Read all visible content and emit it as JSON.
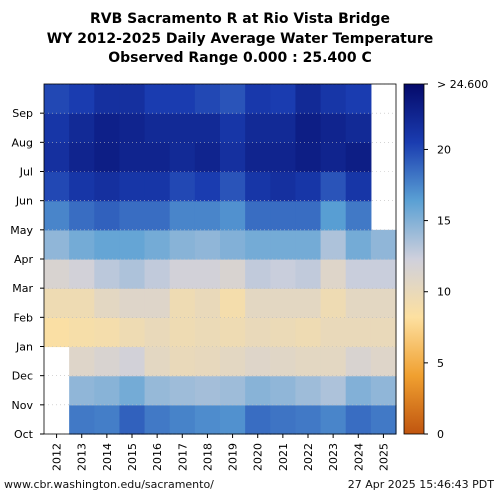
{
  "title_lines": [
    "RVB Sacramento R at Rio Vista Bridge",
    "WY 2012-2025 Daily Average Water Temperature",
    "Observed Range 0.000 : 25.400 C"
  ],
  "footer": {
    "url": "www.cbr.washington.edu/sacramento/",
    "timestamp": "27 Apr 2025 15:46:43 PDT"
  },
  "chart_data": {
    "type": "heatmap",
    "x_categories": [
      "2012",
      "2013",
      "2014",
      "2015",
      "2016",
      "2017",
      "2018",
      "2019",
      "2020",
      "2021",
      "2022",
      "2023",
      "2024",
      "2025"
    ],
    "y_categories": [
      "Oct",
      "Nov",
      "Dec",
      "Jan",
      "Feb",
      "Mar",
      "Apr",
      "May",
      "Jun",
      "Jul",
      "Aug",
      "Sep"
    ],
    "monthly_mean_temperature_c": {
      "Oct": [
        null,
        18.0,
        17.8,
        19.0,
        18.0,
        17.6,
        17.2,
        17.0,
        18.5,
        18.2,
        18.0,
        17.5,
        18.5,
        18.0
      ],
      "Nov": [
        null,
        14.5,
        14.8,
        15.5,
        14.3,
        14.0,
        13.8,
        14.0,
        14.8,
        14.5,
        14.0,
        13.5,
        15.0,
        14.5
      ],
      "Dec": [
        null,
        11.0,
        11.5,
        12.0,
        10.5,
        10.0,
        10.2,
        10.5,
        11.0,
        10.8,
        10.5,
        10.5,
        11.5,
        11.0
      ],
      "Jan": [
        8.5,
        8.8,
        9.0,
        9.5,
        10.0,
        9.5,
        9.8,
        9.5,
        10.0,
        9.8,
        9.5,
        10.0,
        10.0,
        10.0
      ],
      "Feb": [
        9.5,
        9.5,
        10.5,
        11.0,
        11.0,
        9.5,
        10.0,
        9.0,
        10.5,
        10.5,
        10.5,
        9.5,
        10.5,
        10.5
      ],
      "Mar": [
        11.5,
        12.0,
        13.0,
        13.5,
        12.8,
        12.0,
        12.0,
        11.5,
        12.8,
        12.5,
        12.8,
        11.0,
        12.5,
        12.5
      ],
      "Apr": [
        14.5,
        15.5,
        16.0,
        16.0,
        15.5,
        14.8,
        14.5,
        15.0,
        15.5,
        15.5,
        15.5,
        13.5,
        15.5,
        14.5
      ],
      "May": [
        17.5,
        18.5,
        19.0,
        18.5,
        18.5,
        17.5,
        17.5,
        17.0,
        18.5,
        18.5,
        18.5,
        16.5,
        18.0,
        null
      ],
      "Jun": [
        20.0,
        21.0,
        21.5,
        21.0,
        21.0,
        20.0,
        20.5,
        19.5,
        21.0,
        21.5,
        21.0,
        19.5,
        21.0,
        null
      ],
      "Jul": [
        21.5,
        22.5,
        23.0,
        22.5,
        22.5,
        22.0,
        22.5,
        21.5,
        22.5,
        22.5,
        23.0,
        22.5,
        23.0,
        null
      ],
      "Aug": [
        21.0,
        22.0,
        22.8,
        22.5,
        22.0,
        22.0,
        22.0,
        21.0,
        22.0,
        22.0,
        23.0,
        22.5,
        22.0,
        null
      ],
      "Sep": [
        20.0,
        20.5,
        21.5,
        21.5,
        20.5,
        20.5,
        20.0,
        19.5,
        20.8,
        20.5,
        22.0,
        21.0,
        20.5,
        null
      ]
    },
    "colorbar": {
      "min": 0,
      "max": 24.6,
      "ticks": [
        0,
        5,
        10,
        15,
        20
      ],
      "tick_labels": [
        "0",
        "5",
        "10",
        "15",
        "20"
      ],
      "max_label": "> 24.600",
      "stops": [
        "#c0550f",
        "#f0a030",
        "#fde0a0",
        "#cfd0dc",
        "#5aa0d4",
        "#1a3cb0",
        "#050a6a"
      ]
    },
    "grid": true,
    "xlabel": "",
    "ylabel": ""
  }
}
